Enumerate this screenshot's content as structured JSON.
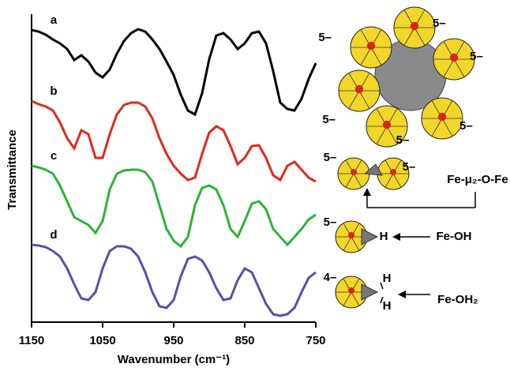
{
  "chart_data": {
    "type": "line",
    "y_label": "Transmittance",
    "x_label": "Wavenumber (cm⁻¹)",
    "x": [
      1150,
      1140,
      1130,
      1120,
      1110,
      1100,
      1090,
      1080,
      1070,
      1060,
      1050,
      1040,
      1030,
      1020,
      1010,
      1000,
      990,
      980,
      970,
      960,
      950,
      940,
      930,
      920,
      910,
      900,
      890,
      880,
      870,
      860,
      850,
      840,
      830,
      820,
      810,
      800,
      790,
      780,
      770,
      760,
      750
    ],
    "xlim": [
      1150,
      750
    ],
    "xticks": [
      1150,
      1050,
      950,
      850,
      750
    ],
    "ylim": [
      0,
      390
    ],
    "series": [
      {
        "name": "a",
        "color": "#000000",
        "values": [
          370,
          368,
          364,
          358,
          353,
          346,
          332,
          338,
          330,
          316,
          310,
          320,
          340,
          356,
          366,
          371,
          368,
          358,
          346,
          330,
          313,
          288,
          268,
          263,
          290,
          333,
          363,
          366,
          358,
          346,
          353,
          366,
          368,
          353,
          318,
          278,
          270,
          268,
          283,
          308,
          328
        ]
      },
      {
        "name": "b",
        "color": "#e0291d",
        "values": [
          280,
          276,
          273,
          268,
          253,
          233,
          220,
          243,
          238,
          208,
          208,
          238,
          263,
          275,
          278,
          278,
          273,
          258,
          233,
          213,
          198,
          188,
          180,
          183,
          213,
          240,
          248,
          243,
          223,
          200,
          208,
          223,
          224,
          208,
          186,
          180,
          198,
          203,
          193,
          183,
          178
        ]
      },
      {
        "name": "c",
        "color": "#2db336",
        "values": [
          198,
          196,
          193,
          188,
          173,
          153,
          133,
          128,
          123,
          113,
          128,
          168,
          188,
          192,
          193,
          193,
          190,
          178,
          148,
          118,
          103,
          96,
          108,
          148,
          170,
          173,
          168,
          148,
          118,
          108,
          128,
          150,
          153,
          143,
          118,
          108,
          98,
          108,
          118,
          130,
          136
        ]
      },
      {
        "name": "d",
        "color": "#5b4ea8",
        "values": [
          98,
          97,
          95,
          90,
          83,
          68,
          48,
          30,
          28,
          38,
          68,
          90,
          96,
          96,
          93,
          83,
          63,
          38,
          20,
          18,
          28,
          58,
          80,
          83,
          78,
          63,
          43,
          28,
          30,
          53,
          68,
          63,
          43,
          23,
          10,
          8,
          10,
          18,
          38,
          56,
          63
        ]
      }
    ],
    "annotations": [
      "5–",
      "5–",
      "5–",
      "5–",
      "5–",
      "5–",
      "5–",
      "5–",
      "Fe-μ₂-O-Fe",
      "5–",
      "H",
      "Fe-OH",
      "4–",
      "H",
      "H",
      "Fe-OH₂"
    ]
  }
}
